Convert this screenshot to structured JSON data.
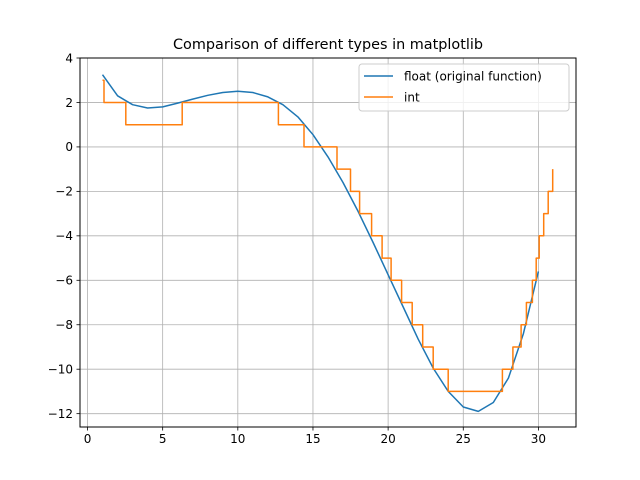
{
  "chart_data": {
    "type": "line",
    "title": "Comparison of different types in matplotlib",
    "xlabel": "",
    "ylabel": "",
    "xlim": [
      -0.5,
      32.5
    ],
    "ylim": [
      -12.6,
      4.0
    ],
    "xticks": [
      0,
      5,
      10,
      15,
      20,
      25,
      30
    ],
    "xtick_labels": [
      "0",
      "5",
      "10",
      "15",
      "20",
      "25",
      "30"
    ],
    "yticks": [
      4,
      2,
      0,
      -2,
      -4,
      -6,
      -8,
      -10,
      -12
    ],
    "ytick_labels": [
      "4",
      "2",
      "0",
      "−2",
      "−4",
      "−6",
      "−8",
      "−10",
      "−12"
    ],
    "grid": true,
    "legend_position": "upper right",
    "series": [
      {
        "name": "float (original function)",
        "color": "#1f77b4",
        "drawstyle": "default",
        "x": [
          1,
          2,
          3,
          4,
          5,
          6,
          7,
          8,
          9,
          10,
          11,
          12,
          13,
          14,
          15,
          16,
          17,
          18,
          19,
          20,
          21,
          22,
          23,
          24,
          25,
          26,
          27,
          28,
          29,
          30
        ],
        "y": [
          3.25,
          2.3,
          1.9,
          1.75,
          1.8,
          1.97,
          2.15,
          2.32,
          2.45,
          2.5,
          2.45,
          2.25,
          1.9,
          1.35,
          0.55,
          -0.45,
          -1.6,
          -2.9,
          -4.3,
          -5.75,
          -7.2,
          -8.65,
          -9.95,
          -11.0,
          -11.7,
          -11.9,
          -11.5,
          -10.4,
          -8.4,
          -5.6
        ]
      },
      {
        "name": "int",
        "color": "#ff7f0e",
        "drawstyle": "steps-post",
        "x": [
          1,
          1.1,
          2.55,
          6.3,
          12.7,
          14.4,
          16.6,
          17.5,
          18.1,
          18.9,
          19.6,
          20.2,
          20.9,
          21.6,
          22.3,
          23.0,
          24.0,
          27.6,
          28.3,
          28.85,
          29.2,
          29.6,
          29.85,
          30.05,
          30.35,
          30.65,
          30.95
        ],
        "y": [
          3,
          2,
          1,
          2,
          1,
          0,
          -1,
          -2,
          -3,
          -4,
          -5,
          -6,
          -7,
          -8,
          -9,
          -10,
          -11,
          -10,
          -9,
          -8,
          -7,
          -6,
          -5,
          -4,
          -3,
          -2,
          -1
        ]
      }
    ]
  }
}
